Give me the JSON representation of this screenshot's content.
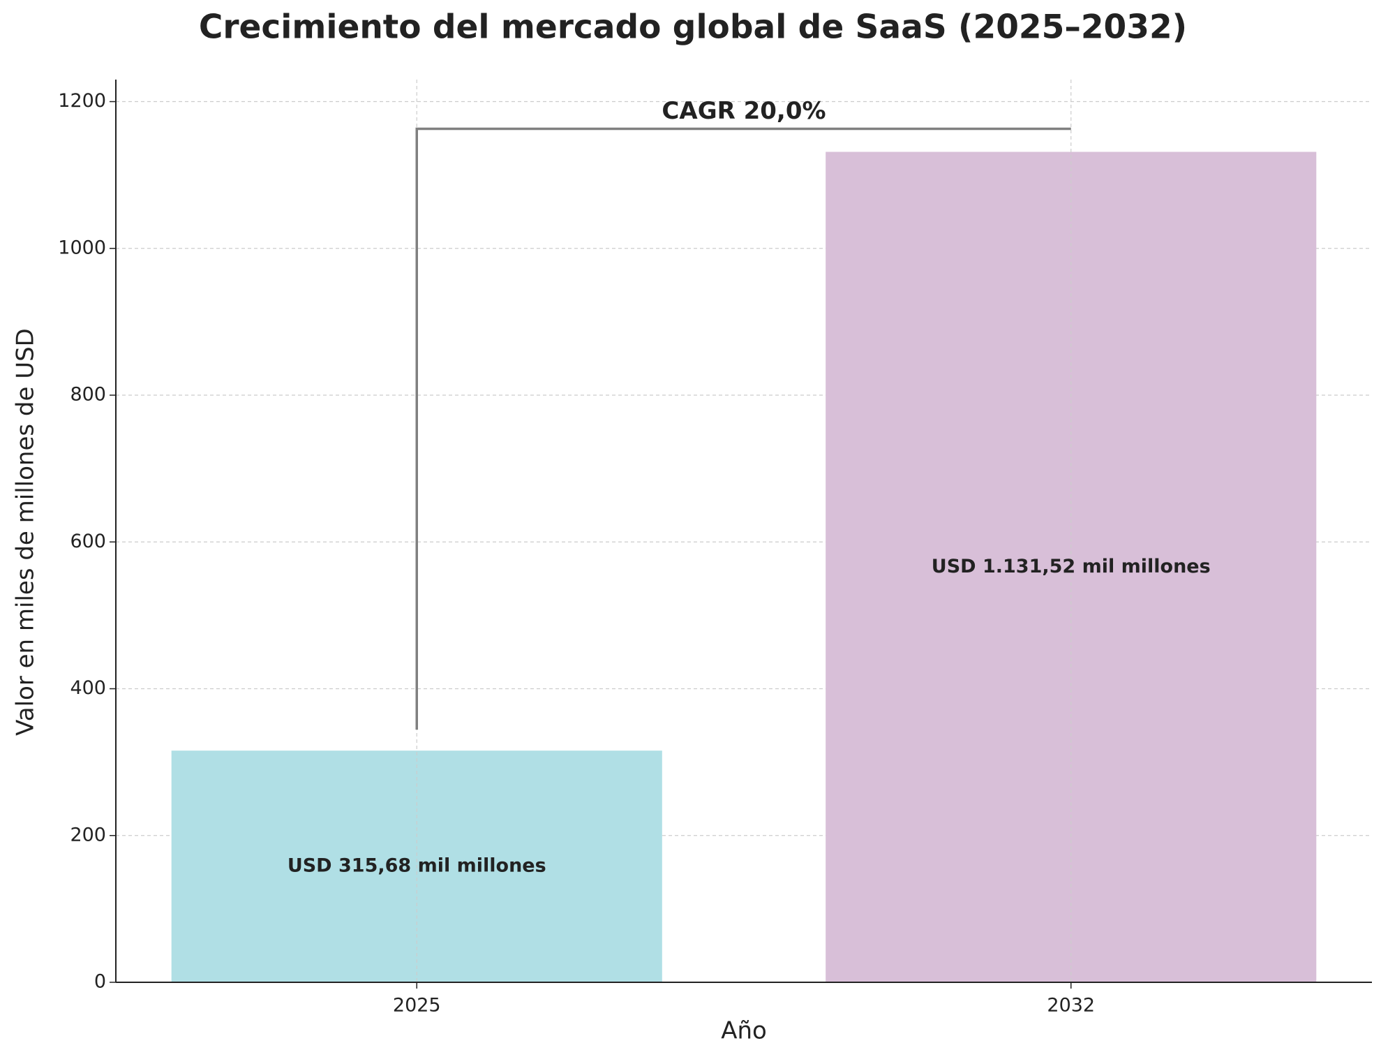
{
  "chart_data": {
    "type": "bar",
    "title": "Crecimiento del mercado global de SaaS (2025–2032)",
    "x_label": "Año",
    "y_label": "Valor en miles de millones de USD",
    "categories": [
      "2025",
      "2032"
    ],
    "values": [
      315.68,
      1131.52
    ],
    "value_labels": [
      "USD 315,68 mil millones",
      "USD 1.131,52 mil millones"
    ],
    "colors": [
      "#b0dfe5",
      "#d8bfd8"
    ],
    "annotation": "CAGR 20,0%",
    "ylim": [
      0,
      1230
    ],
    "yticks": [
      0,
      200,
      400,
      600,
      800,
      1000,
      1200
    ],
    "grid": true
  }
}
